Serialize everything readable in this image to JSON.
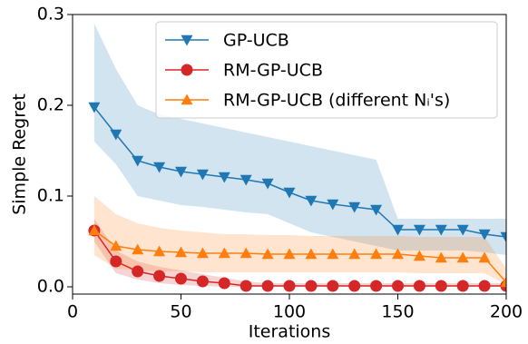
{
  "chart_data": {
    "type": "line",
    "xlabel": "Iterations",
    "ylabel": "Simple Regret",
    "x": [
      10,
      20,
      30,
      40,
      50,
      60,
      70,
      80,
      90,
      100,
      110,
      120,
      130,
      140,
      150,
      160,
      170,
      180,
      190,
      200
    ],
    "series": [
      {
        "name": "GP-UCB",
        "color": "#1f77b4",
        "marker": "triangle-down",
        "values": [
          0.198,
          0.168,
          0.139,
          0.132,
          0.127,
          0.124,
          0.121,
          0.118,
          0.114,
          0.104,
          0.095,
          0.091,
          0.088,
          0.085,
          0.063,
          0.063,
          0.063,
          0.063,
          0.058,
          0.055
        ],
        "upper": [
          0.29,
          0.24,
          0.2,
          0.19,
          0.185,
          0.18,
          0.175,
          0.17,
          0.165,
          0.16,
          0.155,
          0.15,
          0.145,
          0.14,
          0.075,
          0.075,
          0.075,
          0.075,
          0.075,
          0.075
        ],
        "lower": [
          0.16,
          0.135,
          0.1,
          0.095,
          0.09,
          0.088,
          0.085,
          0.082,
          0.08,
          0.07,
          0.06,
          0.055,
          0.05,
          0.045,
          0.04,
          0.04,
          0.04,
          0.04,
          0.038,
          0.035
        ]
      },
      {
        "name": "RM-GP-UCB",
        "color": "#d62728",
        "marker": "circle",
        "values": [
          0.062,
          0.028,
          0.017,
          0.012,
          0.009,
          0.006,
          0.004,
          0.001,
          0.001,
          0.001,
          0.001,
          0.001,
          0.001,
          0.001,
          0.001,
          0.001,
          0.001,
          0.001,
          0.001,
          0.001
        ],
        "upper": [
          0.075,
          0.04,
          0.028,
          0.022,
          0.018,
          0.014,
          0.01,
          0.006,
          0.004,
          0.004,
          0.004,
          0.004,
          0.004,
          0.004,
          0.004,
          0.004,
          0.004,
          0.004,
          0.004,
          0.004
        ],
        "lower": [
          0.05,
          0.015,
          0.008,
          0.004,
          0.002,
          0.001,
          0,
          0,
          0,
          0,
          0,
          0,
          0,
          0,
          0,
          0,
          0,
          0,
          0,
          0
        ]
      },
      {
        "name": "RM-GP-UCB (different Nᵢ's)",
        "color": "#ff7f0e",
        "marker": "triangle-up",
        "values": [
          0.062,
          0.045,
          0.041,
          0.039,
          0.038,
          0.037,
          0.037,
          0.037,
          0.036,
          0.036,
          0.036,
          0.036,
          0.036,
          0.036,
          0.036,
          0.034,
          0.032,
          0.032,
          0.032,
          0.005
        ],
        "upper": [
          0.1,
          0.08,
          0.07,
          0.065,
          0.062,
          0.06,
          0.058,
          0.058,
          0.057,
          0.057,
          0.056,
          0.056,
          0.056,
          0.056,
          0.056,
          0.055,
          0.055,
          0.055,
          0.055,
          0.02
        ],
        "lower": [
          0.035,
          0.02,
          0.018,
          0.017,
          0.017,
          0.016,
          0.016,
          0.016,
          0.016,
          0.016,
          0.016,
          0.016,
          0.016,
          0.016,
          0.016,
          0.015,
          0.015,
          0.015,
          0.015,
          0.002
        ]
      }
    ],
    "xlim": [
      0,
      200
    ],
    "ylim": [
      -0.008,
      0.3
    ],
    "xticks": [
      0,
      50,
      100,
      150,
      200
    ],
    "yticks": [
      {
        "value": 0,
        "label": "0.0"
      },
      {
        "value": 0.1,
        "label": "0.1"
      },
      {
        "value": 0.2,
        "label": "0.2"
      },
      {
        "value": 0.3,
        "label": "0.3"
      }
    ],
    "legend": "upper right"
  }
}
